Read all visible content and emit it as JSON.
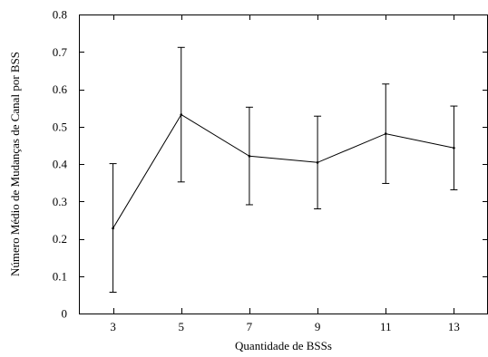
{
  "chart_data": {
    "type": "line",
    "title": "",
    "xlabel": "Quantidade de  BSSs",
    "ylabel": "Número Médio de Mudanças de Canal por BSS",
    "x": [
      3,
      5,
      7,
      9,
      11,
      13
    ],
    "xticks": [
      "3",
      "5",
      "7",
      "9",
      "11",
      "13"
    ],
    "xlim": [
      2,
      14
    ],
    "ylim": [
      0,
      0.8
    ],
    "yticks": [
      "0",
      "0.1",
      "0.2",
      "0.3",
      "0.4",
      "0.5",
      "0.6",
      "0.7",
      "0.8"
    ],
    "grid": false,
    "series": [
      {
        "values": [
          0.228,
          0.532,
          0.421,
          0.404,
          0.481,
          0.443
        ],
        "error_low": [
          0.057,
          0.352,
          0.291,
          0.28,
          0.348,
          0.331
        ],
        "error_high": [
          0.401,
          0.712,
          0.552,
          0.528,
          0.614,
          0.555
        ],
        "color": "#000000"
      }
    ]
  }
}
